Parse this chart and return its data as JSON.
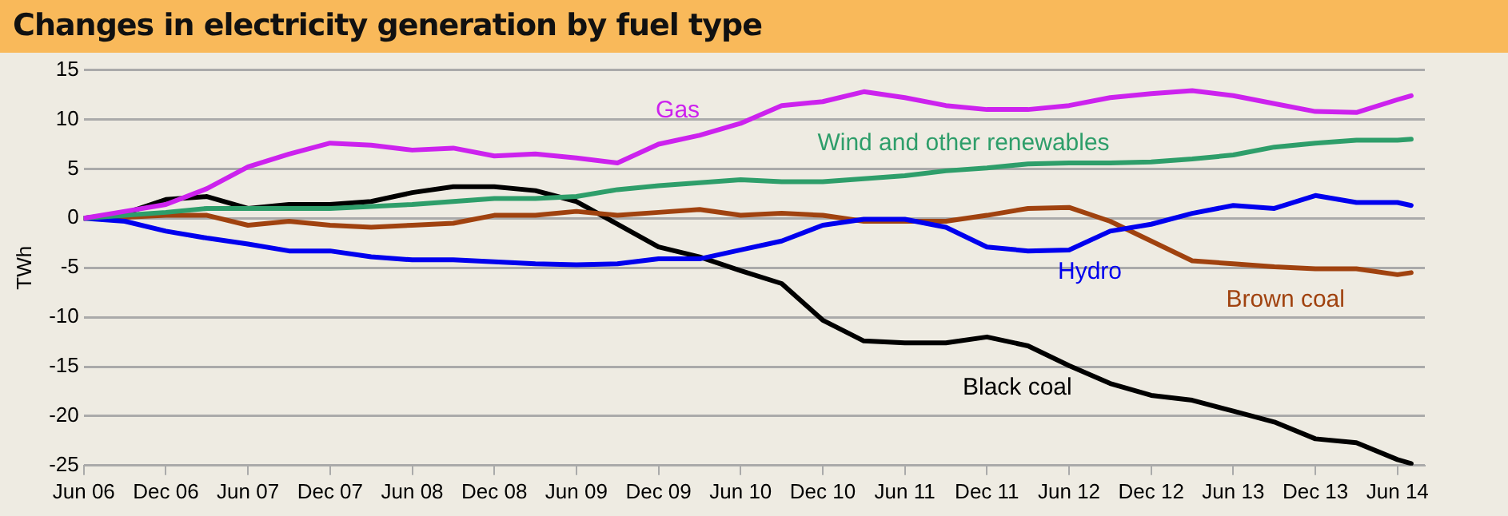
{
  "chart_data": {
    "type": "line",
    "title": "Changes in electricity generation by fuel type",
    "ylabel": "TWh",
    "x": [
      "2006-06",
      "2006-09",
      "2006-12",
      "2007-03",
      "2007-06",
      "2007-09",
      "2007-12",
      "2008-03",
      "2008-06",
      "2008-09",
      "2008-12",
      "2009-03",
      "2009-06",
      "2009-09",
      "2009-12",
      "2010-03",
      "2010-06",
      "2010-09",
      "2010-12",
      "2011-03",
      "2011-06",
      "2011-09",
      "2011-12",
      "2012-03",
      "2012-06",
      "2012-09",
      "2012-12",
      "2013-03",
      "2013-06",
      "2013-09",
      "2013-12",
      "2014-03",
      "2014-06",
      "2014-07"
    ],
    "series": [
      {
        "name": "Gas",
        "color": "#cc22ee",
        "values": [
          0,
          0.7,
          1.4,
          3.0,
          5.2,
          6.5,
          7.6,
          7.4,
          6.9,
          7.1,
          6.3,
          6.5,
          6.1,
          5.6,
          7.5,
          8.4,
          9.6,
          11.4,
          11.8,
          12.8,
          12.2,
          11.4,
          11.0,
          11.0,
          11.4,
          12.2,
          12.6,
          12.9,
          12.4,
          11.6,
          10.8,
          10.7,
          12.0,
          12.4
        ]
      },
      {
        "name": "Wind and other renewables",
        "color": "#2e9e6a",
        "values": [
          0,
          0.3,
          0.6,
          1.0,
          1.0,
          1.0,
          1.0,
          1.2,
          1.4,
          1.7,
          2.0,
          2.0,
          2.2,
          2.9,
          3.3,
          3.6,
          3.9,
          3.7,
          3.7,
          4.0,
          4.3,
          4.8,
          5.1,
          5.5,
          5.6,
          5.6,
          5.7,
          6.0,
          6.4,
          7.2,
          7.6,
          7.9,
          7.9,
          8.0
        ]
      },
      {
        "name": "Hydro",
        "color": "#0000ee",
        "values": [
          0,
          -0.3,
          -1.3,
          -2.0,
          -2.6,
          -3.3,
          -3.3,
          -3.9,
          -4.2,
          -4.2,
          -4.4,
          -4.6,
          -4.7,
          -4.6,
          -4.1,
          -4.1,
          -3.2,
          -2.3,
          -0.7,
          -0.1,
          -0.1,
          -0.9,
          -2.9,
          -3.3,
          -3.2,
          -1.3,
          -0.6,
          0.5,
          1.3,
          1.0,
          2.3,
          1.6,
          1.6,
          1.3
        ]
      },
      {
        "name": "Brown coal",
        "color": "#a0420f",
        "values": [
          0,
          0.1,
          0.3,
          0.3,
          -0.7,
          -0.3,
          -0.7,
          -0.9,
          -0.7,
          -0.5,
          0.3,
          0.3,
          0.7,
          0.3,
          0.6,
          0.9,
          0.3,
          0.5,
          0.3,
          -0.3,
          -0.3,
          -0.3,
          0.3,
          1.0,
          1.1,
          -0.3,
          -2.3,
          -4.3,
          -4.6,
          -4.9,
          -5.1,
          -5.1,
          -5.7,
          -5.5
        ]
      },
      {
        "name": "Black coal",
        "color": "#000000",
        "values": [
          0,
          0.5,
          1.9,
          2.2,
          1.0,
          1.4,
          1.4,
          1.7,
          2.6,
          3.2,
          3.2,
          2.8,
          1.7,
          -0.6,
          -2.9,
          -3.9,
          -5.3,
          -6.6,
          -10.3,
          -12.4,
          -12.6,
          -12.6,
          -12.0,
          -12.9,
          -14.9,
          -16.7,
          -17.9,
          -18.4,
          -19.5,
          -20.6,
          -22.3,
          -22.7,
          -24.4,
          -24.8
        ]
      }
    ],
    "xlim": [
      "2006-06",
      "2014-08"
    ],
    "xticks": [
      {
        "value": "2006-06",
        "label": "Jun 06"
      },
      {
        "value": "2006-12",
        "label": "Dec 06"
      },
      {
        "value": "2007-06",
        "label": "Jun 07"
      },
      {
        "value": "2007-12",
        "label": "Dec 07"
      },
      {
        "value": "2008-06",
        "label": "Jun 08"
      },
      {
        "value": "2008-12",
        "label": "Dec 08"
      },
      {
        "value": "2009-06",
        "label": "Jun 09"
      },
      {
        "value": "2009-12",
        "label": "Dec 09"
      },
      {
        "value": "2010-06",
        "label": "Jun 10"
      },
      {
        "value": "2010-12",
        "label": "Dec 10"
      },
      {
        "value": "2011-06",
        "label": "Jun 11"
      },
      {
        "value": "2011-12",
        "label": "Dec 11"
      },
      {
        "value": "2012-06",
        "label": "Jun 12"
      },
      {
        "value": "2012-12",
        "label": "Dec 12"
      },
      {
        "value": "2013-06",
        "label": "Jun 13"
      },
      {
        "value": "2013-12",
        "label": "Dec 13"
      },
      {
        "value": "2014-06",
        "label": "Jun 14"
      }
    ],
    "ylim": [
      -25,
      15
    ],
    "yticks": [
      -25,
      -20,
      -15,
      -10,
      -5,
      0,
      5,
      10,
      15
    ],
    "grid": "y",
    "legend": false,
    "marker": "none",
    "line_style": "solid"
  }
}
